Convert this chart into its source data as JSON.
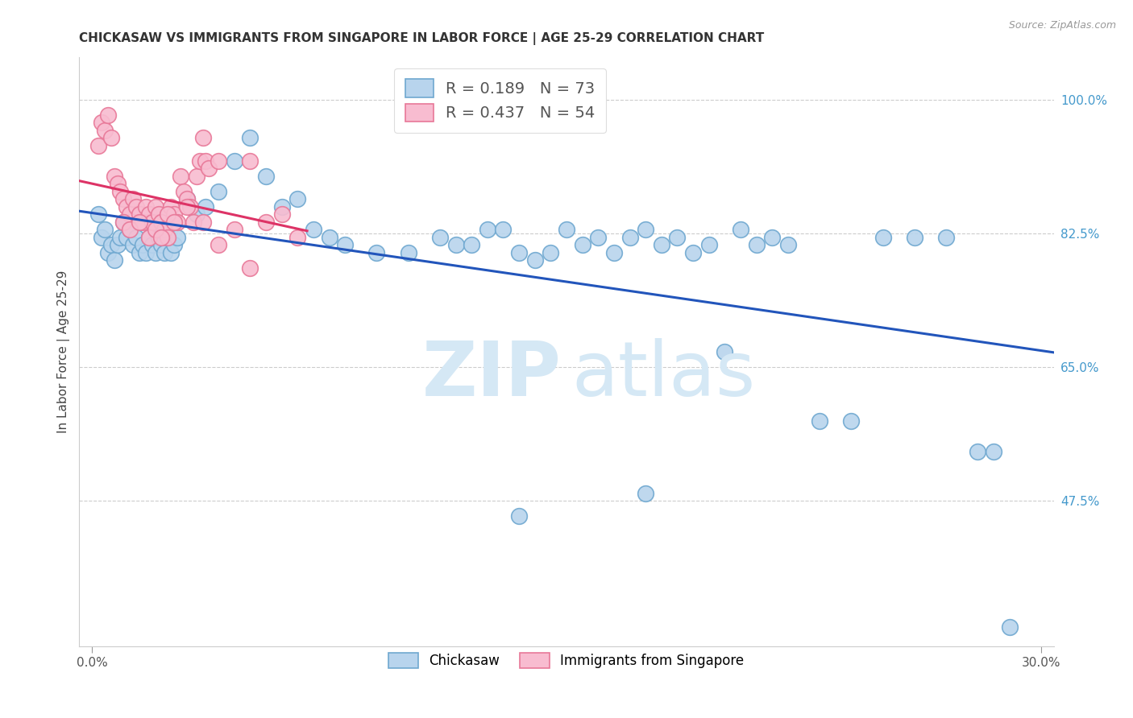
{
  "title": "CHICKASAW VS IMMIGRANTS FROM SINGAPORE IN LABOR FORCE | AGE 25-29 CORRELATION CHART",
  "source": "Source: ZipAtlas.com",
  "ylabel": "In Labor Force | Age 25-29",
  "legend_blue_r": "0.189",
  "legend_blue_n": "73",
  "legend_pink_r": "0.437",
  "legend_pink_n": "54",
  "blue_color": "#b8d4ed",
  "blue_edge": "#6fa8d0",
  "pink_color": "#f8bcd0",
  "pink_edge": "#e87898",
  "blue_line_color": "#2255bb",
  "pink_line_color": "#dd3366",
  "watermark_color": "#d5e8f5",
  "right_tick_color": "#4499cc",
  "blue_x": [
    0.002,
    0.003,
    0.004,
    0.005,
    0.006,
    0.007,
    0.008,
    0.009,
    0.01,
    0.011,
    0.012,
    0.013,
    0.014,
    0.015,
    0.016,
    0.017,
    0.018,
    0.019,
    0.02,
    0.021,
    0.022,
    0.023,
    0.024,
    0.025,
    0.026,
    0.027,
    0.03,
    0.033,
    0.036,
    0.04,
    0.045,
    0.05,
    0.055,
    0.06,
    0.065,
    0.07,
    0.075,
    0.08,
    0.09,
    0.1,
    0.11,
    0.115,
    0.12,
    0.125,
    0.13,
    0.135,
    0.14,
    0.145,
    0.15,
    0.155,
    0.16,
    0.165,
    0.17,
    0.175,
    0.18,
    0.185,
    0.19,
    0.195,
    0.2,
    0.205,
    0.21,
    0.215,
    0.22,
    0.23,
    0.24,
    0.25,
    0.26,
    0.27,
    0.28,
    0.285,
    0.29,
    0.175,
    0.135
  ],
  "blue_y": [
    0.85,
    0.82,
    0.83,
    0.8,
    0.81,
    0.79,
    0.81,
    0.82,
    0.84,
    0.82,
    0.83,
    0.81,
    0.82,
    0.8,
    0.81,
    0.8,
    0.82,
    0.81,
    0.8,
    0.82,
    0.81,
    0.8,
    0.82,
    0.8,
    0.81,
    0.82,
    0.87,
    0.85,
    0.86,
    0.88,
    0.92,
    0.95,
    0.9,
    0.86,
    0.87,
    0.83,
    0.82,
    0.81,
    0.8,
    0.8,
    0.82,
    0.81,
    0.81,
    0.83,
    0.83,
    0.8,
    0.79,
    0.8,
    0.83,
    0.81,
    0.82,
    0.8,
    0.82,
    0.83,
    0.81,
    0.82,
    0.8,
    0.81,
    0.67,
    0.83,
    0.81,
    0.82,
    0.81,
    0.58,
    0.58,
    0.82,
    0.82,
    0.82,
    0.54,
    0.54,
    0.31,
    0.485,
    0.455
  ],
  "pink_x": [
    0.002,
    0.003,
    0.004,
    0.005,
    0.006,
    0.007,
    0.008,
    0.009,
    0.01,
    0.011,
    0.012,
    0.013,
    0.014,
    0.015,
    0.016,
    0.017,
    0.018,
    0.019,
    0.02,
    0.021,
    0.022,
    0.023,
    0.024,
    0.025,
    0.026,
    0.027,
    0.028,
    0.029,
    0.03,
    0.031,
    0.032,
    0.033,
    0.034,
    0.035,
    0.036,
    0.037,
    0.04,
    0.045,
    0.05,
    0.055,
    0.06,
    0.065,
    0.01,
    0.012,
    0.015,
    0.018,
    0.02,
    0.022,
    0.024,
    0.026,
    0.03,
    0.035,
    0.04,
    0.05
  ],
  "pink_y": [
    0.94,
    0.97,
    0.96,
    0.98,
    0.95,
    0.9,
    0.89,
    0.88,
    0.87,
    0.86,
    0.85,
    0.87,
    0.86,
    0.85,
    0.84,
    0.86,
    0.85,
    0.84,
    0.86,
    0.85,
    0.84,
    0.83,
    0.82,
    0.86,
    0.85,
    0.84,
    0.9,
    0.88,
    0.87,
    0.86,
    0.84,
    0.9,
    0.92,
    0.95,
    0.92,
    0.91,
    0.92,
    0.83,
    0.92,
    0.84,
    0.85,
    0.82,
    0.84,
    0.83,
    0.84,
    0.82,
    0.83,
    0.82,
    0.85,
    0.84,
    0.86,
    0.84,
    0.81,
    0.78
  ]
}
